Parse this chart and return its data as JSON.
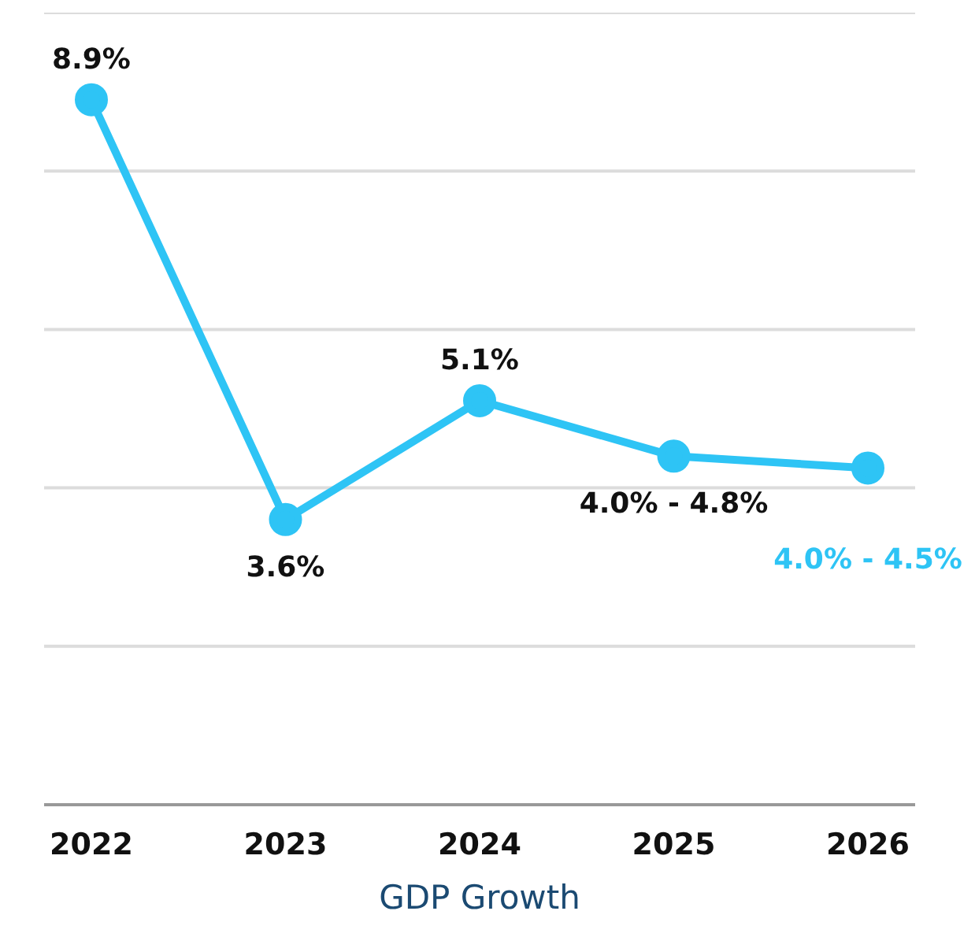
{
  "chart_data": {
    "type": "line",
    "xlabel": "GDP Growth",
    "categories": [
      "2022",
      "2023",
      "2024",
      "2025",
      "2026"
    ],
    "series": [
      {
        "color": "#2ec4f5",
        "values": [
          8.9,
          3.6,
          5.1,
          4.4,
          4.25
        ],
        "value_labels": [
          "8.9%",
          "3.6%",
          "5.1%",
          null,
          null
        ]
      }
    ],
    "annotations": [
      {
        "text": "4.0% - 4.8%",
        "x": "2025",
        "y": 4.4
      },
      {
        "text": "4.0% - 4.5%",
        "x": "2026",
        "y": 4.25
      }
    ],
    "ylim": [
      0,
      10
    ],
    "yticks": [
      {
        "value": 0,
        "label": null
      },
      {
        "value": 2,
        "label": null
      },
      {
        "value": 4,
        "label": null
      },
      {
        "value": 6,
        "label": null
      },
      {
        "value": 8,
        "label": null
      },
      {
        "value": 10,
        "label": null
      }
    ],
    "grid": "y",
    "marker": "circle",
    "line_style": "solid",
    "tick_labels": "x"
  }
}
